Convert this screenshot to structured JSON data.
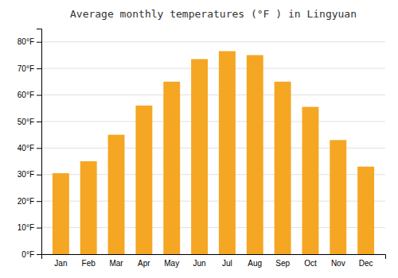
{
  "chart_data": {
    "type": "bar",
    "title": "Average monthly temperatures (°F ) in Lingyuan",
    "categories": [
      "Jan",
      "Feb",
      "Mar",
      "Apr",
      "May",
      "Jun",
      "Jul",
      "Aug",
      "Sep",
      "Oct",
      "Nov",
      "Dec"
    ],
    "values": [
      30.5,
      35.0,
      45.0,
      56.0,
      65.0,
      73.5,
      76.5,
      75.0,
      65.0,
      55.5,
      43.0,
      33.0
    ],
    "color": "#F5A623",
    "ylim": [
      0,
      85
    ],
    "yticks": [
      {
        "value": 0,
        "label": "0°F"
      },
      {
        "value": 10,
        "label": "10°F"
      },
      {
        "value": 20,
        "label": "20°F"
      },
      {
        "value": 30,
        "label": "30°F"
      },
      {
        "value": 40,
        "label": "40°F"
      },
      {
        "value": 50,
        "label": "50°F"
      },
      {
        "value": 60,
        "label": "60°F"
      },
      {
        "value": 70,
        "label": "70°F"
      },
      {
        "value": 80,
        "label": "80°F"
      }
    ],
    "grid": true
  }
}
